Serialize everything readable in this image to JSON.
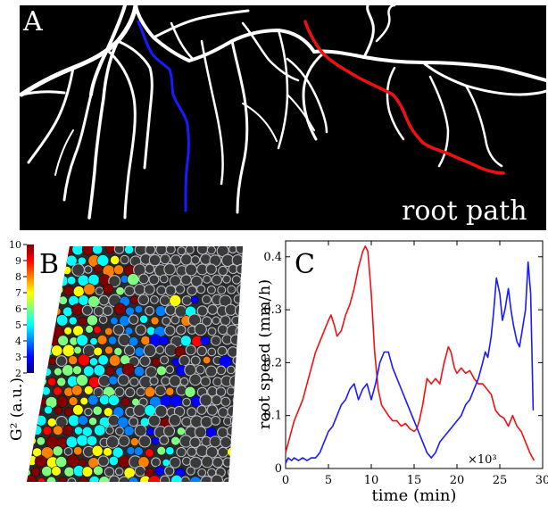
{
  "panel_a": {
    "label": "A",
    "caption": "root path",
    "colors": {
      "background": "#000000",
      "roots": "#ffffff",
      "path_blue": "#1a1aff",
      "path_red": "#ee1111"
    }
  },
  "panel_b": {
    "label": "B",
    "colorbar": {
      "ticks": [
        "10",
        "9",
        "8",
        "7",
        "6",
        "5",
        "4",
        "3",
        "2"
      ],
      "label": "G² (a.u.)",
      "colormap": [
        "#000080",
        "#0000ff",
        "#0080ff",
        "#00ffff",
        "#80ff80",
        "#ffff00",
        "#ff8000",
        "#ff0000",
        "#800000"
      ]
    }
  },
  "panel_c": {
    "label": "C",
    "multiplier": "×10³"
  },
  "chart_data": {
    "type": "line",
    "xlabel": "time (min)",
    "ylabel": "root speed (mm/h)",
    "xlim": [
      0,
      30
    ],
    "ylim": [
      0,
      0.43
    ],
    "xticks": [
      "0",
      "5",
      "10",
      "15",
      "20",
      "25",
      "30"
    ],
    "yticks": [
      "0",
      "0.1",
      "0.2",
      "0.3",
      "0.4"
    ],
    "grid": false,
    "series": [
      {
        "color": "#ee1111",
        "x": [
          0,
          0.5,
          1,
          1.5,
          2,
          2.5,
          3,
          3.5,
          4,
          4.5,
          5,
          5.3,
          5.7,
          6,
          6.5,
          7,
          7.5,
          8,
          8.5,
          9,
          9.3,
          9.6,
          10,
          10.4,
          10.8,
          11.2,
          11.6,
          12,
          12.5,
          13,
          13.5,
          14,
          14.5,
          15,
          15.3,
          15.6,
          16,
          16.5,
          17,
          17.5,
          18,
          18.5,
          19,
          19.3,
          19.7,
          20,
          20.5,
          21,
          21.5,
          22,
          22.5,
          23,
          23.5,
          24,
          24.5,
          25,
          25.5,
          26,
          26.5,
          27,
          27.5,
          28,
          28.5,
          29
        ],
        "y": [
          0.03,
          0.06,
          0.09,
          0.11,
          0.13,
          0.16,
          0.19,
          0.22,
          0.24,
          0.26,
          0.28,
          0.29,
          0.27,
          0.25,
          0.26,
          0.29,
          0.31,
          0.34,
          0.38,
          0.41,
          0.42,
          0.41,
          0.33,
          0.22,
          0.15,
          0.12,
          0.11,
          0.1,
          0.09,
          0.09,
          0.08,
          0.085,
          0.075,
          0.07,
          0.075,
          0.09,
          0.12,
          0.17,
          0.16,
          0.17,
          0.16,
          0.2,
          0.23,
          0.22,
          0.19,
          0.18,
          0.19,
          0.18,
          0.185,
          0.17,
          0.16,
          0.16,
          0.15,
          0.14,
          0.11,
          0.1,
          0.095,
          0.08,
          0.1,
          0.08,
          0.07,
          0.05,
          0.03,
          0.015
        ]
      },
      {
        "color": "#1a1aff",
        "x": [
          0,
          0.3,
          0.7,
          1,
          1.5,
          2,
          2.5,
          3,
          3.5,
          4,
          4.5,
          5,
          5.5,
          6,
          6.5,
          7,
          7.5,
          8,
          8.5,
          9,
          9.5,
          10,
          10.5,
          11,
          11.5,
          12,
          12.5,
          13,
          13.5,
          14,
          14.5,
          15,
          15.5,
          16,
          16.5,
          17,
          17.5,
          18,
          18.5,
          19,
          19.5,
          20,
          20.5,
          21,
          21.5,
          22,
          22.5,
          23,
          23.3,
          23.6,
          24,
          24.3,
          24.6,
          25,
          25.3,
          25.6,
          26,
          26.3,
          26.6,
          27,
          27.3,
          27.6,
          28,
          28.3,
          28.6,
          28.9
        ],
        "y": [
          0.01,
          0.02,
          0.015,
          0.02,
          0.015,
          0.02,
          0.015,
          0.02,
          0.02,
          0.03,
          0.05,
          0.07,
          0.08,
          0.1,
          0.12,
          0.13,
          0.15,
          0.16,
          0.13,
          0.15,
          0.16,
          0.13,
          0.16,
          0.2,
          0.22,
          0.22,
          0.19,
          0.17,
          0.15,
          0.13,
          0.11,
          0.09,
          0.07,
          0.05,
          0.03,
          0.02,
          0.03,
          0.05,
          0.06,
          0.07,
          0.08,
          0.09,
          0.1,
          0.12,
          0.13,
          0.15,
          0.17,
          0.2,
          0.22,
          0.21,
          0.25,
          0.3,
          0.36,
          0.33,
          0.28,
          0.3,
          0.34,
          0.3,
          0.27,
          0.24,
          0.23,
          0.26,
          0.3,
          0.39,
          0.33,
          0.11
        ]
      }
    ]
  }
}
